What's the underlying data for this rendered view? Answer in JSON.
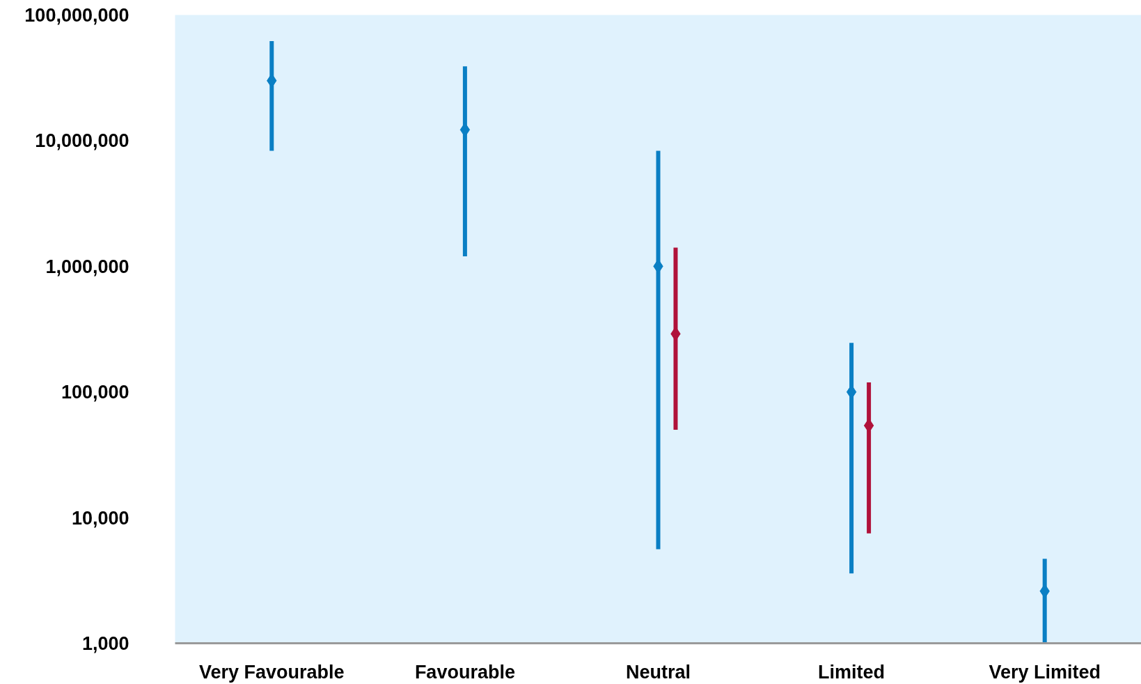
{
  "chart_data": {
    "type": "scatter",
    "categories": [
      "Very Favourable",
      "Favourable",
      "Neutral",
      "Limited",
      "Very Limited"
    ],
    "series": [
      {
        "color": "#0a7fc4",
        "values": [
          30000000,
          12200000,
          1000000,
          100000,
          2600
        ],
        "errors": [
          [
            8300000,
            62000000
          ],
          [
            1200000,
            39000000
          ],
          [
            5600,
            8300000
          ],
          [
            3600,
            246000
          ],
          [
            1000,
            4700
          ]
        ]
      },
      {
        "color": "#b0123a",
        "values": [
          null,
          null,
          290000,
          54000,
          null
        ],
        "errors": [
          null,
          null,
          [
            50000,
            1410000
          ],
          [
            7500,
            119000
          ],
          null
        ]
      }
    ],
    "ylim": [
      1000,
      100000000
    ],
    "yticks": [
      {
        "value": 1000,
        "label": "1,000"
      },
      {
        "value": 10000,
        "label": "10,000"
      },
      {
        "value": 100000,
        "label": "100,000"
      },
      {
        "value": 1000000,
        "label": "1,000,000"
      },
      {
        "value": 10000000,
        "label": "10,000,000"
      },
      {
        "value": 100000000,
        "label": "100,000,000"
      }
    ],
    "log": "y",
    "grid": false,
    "marker": "diamond"
  }
}
